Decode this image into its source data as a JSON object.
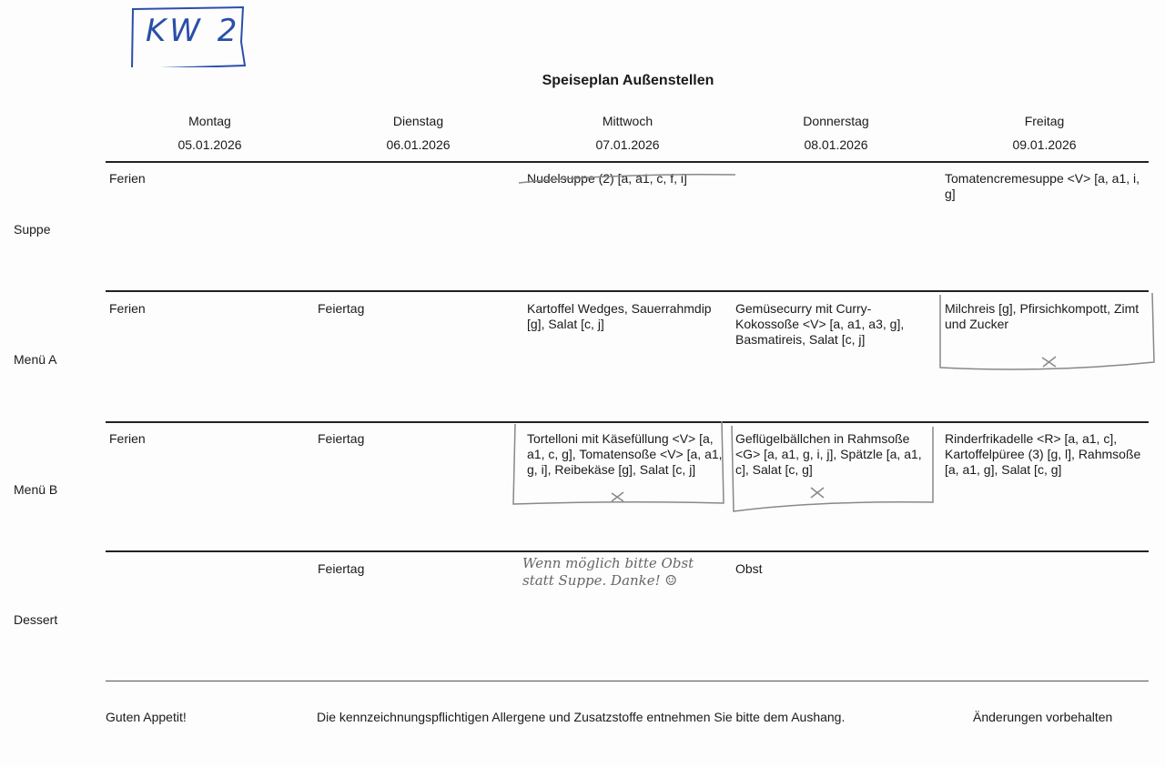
{
  "handwritten_label": "KW 2",
  "title": "Speiseplan Außenstellen",
  "days": [
    {
      "name": "Montag",
      "date": "05.01.2026"
    },
    {
      "name": "Dienstag",
      "date": "06.01.2026"
    },
    {
      "name": "Mittwoch",
      "date": "07.01.2026"
    },
    {
      "name": "Donnerstag",
      "date": "08.01.2026"
    },
    {
      "name": "Freitag",
      "date": "09.01.2026"
    }
  ],
  "rows": [
    {
      "label": "Suppe",
      "cells": [
        "Ferien",
        "",
        "Nudelsuppe (2) [a, a1, c, f, i]",
        "",
        "Tomatencremesuppe <V> [a, a1, i, g]"
      ]
    },
    {
      "label": "Menü A",
      "cells": [
        "Ferien",
        "Feiertag",
        "Kartoffel Wedges, Sauerrahmdip [g], Salat [c, j]",
        "Gemüsecurry mit  Curry-Kokossoße <V> [a, a1, a3, g], Basmatireis, Salat [c, j]",
        "Milchreis [g], Pfirsichkompott, Zimt und Zucker"
      ]
    },
    {
      "label": "Menü B",
      "cells": [
        "Ferien",
        "Feiertag",
        "Tortelloni mit Käsefüllung <V> [a, a1, c, g], Tomatensoße <V> [a, a1, g, i], Reibekäse [g], Salat [c, j]",
        "Geflügelbällchen in Rahmsoße <G> [a, a1, g, i, j], Spätzle [a, a1, c], Salat [c, g]",
        "Rinderfrikadelle <R> [a, a1, c], Kartoffelpüree (3) [g, l], Rahmsoße [a, a1, g], Salat [c, g]"
      ]
    },
    {
      "label": "Dessert",
      "cells": [
        "",
        "Feiertag",
        "",
        "Obst",
        ""
      ]
    }
  ],
  "handwritten_note": "Wenn möglich bitte Obst statt Suppe. Danke! ☺",
  "footer": {
    "left": "Guten Appetit!",
    "center": "Die kennzeichnungspflichtigen Allergene und Zusatzstoffe entnehmen Sie bitte dem Aushang.",
    "right": "Änderungen vorbehalten"
  },
  "colors": {
    "handwriting_blue": "#2a4fa8",
    "pencil": "#777777"
  }
}
